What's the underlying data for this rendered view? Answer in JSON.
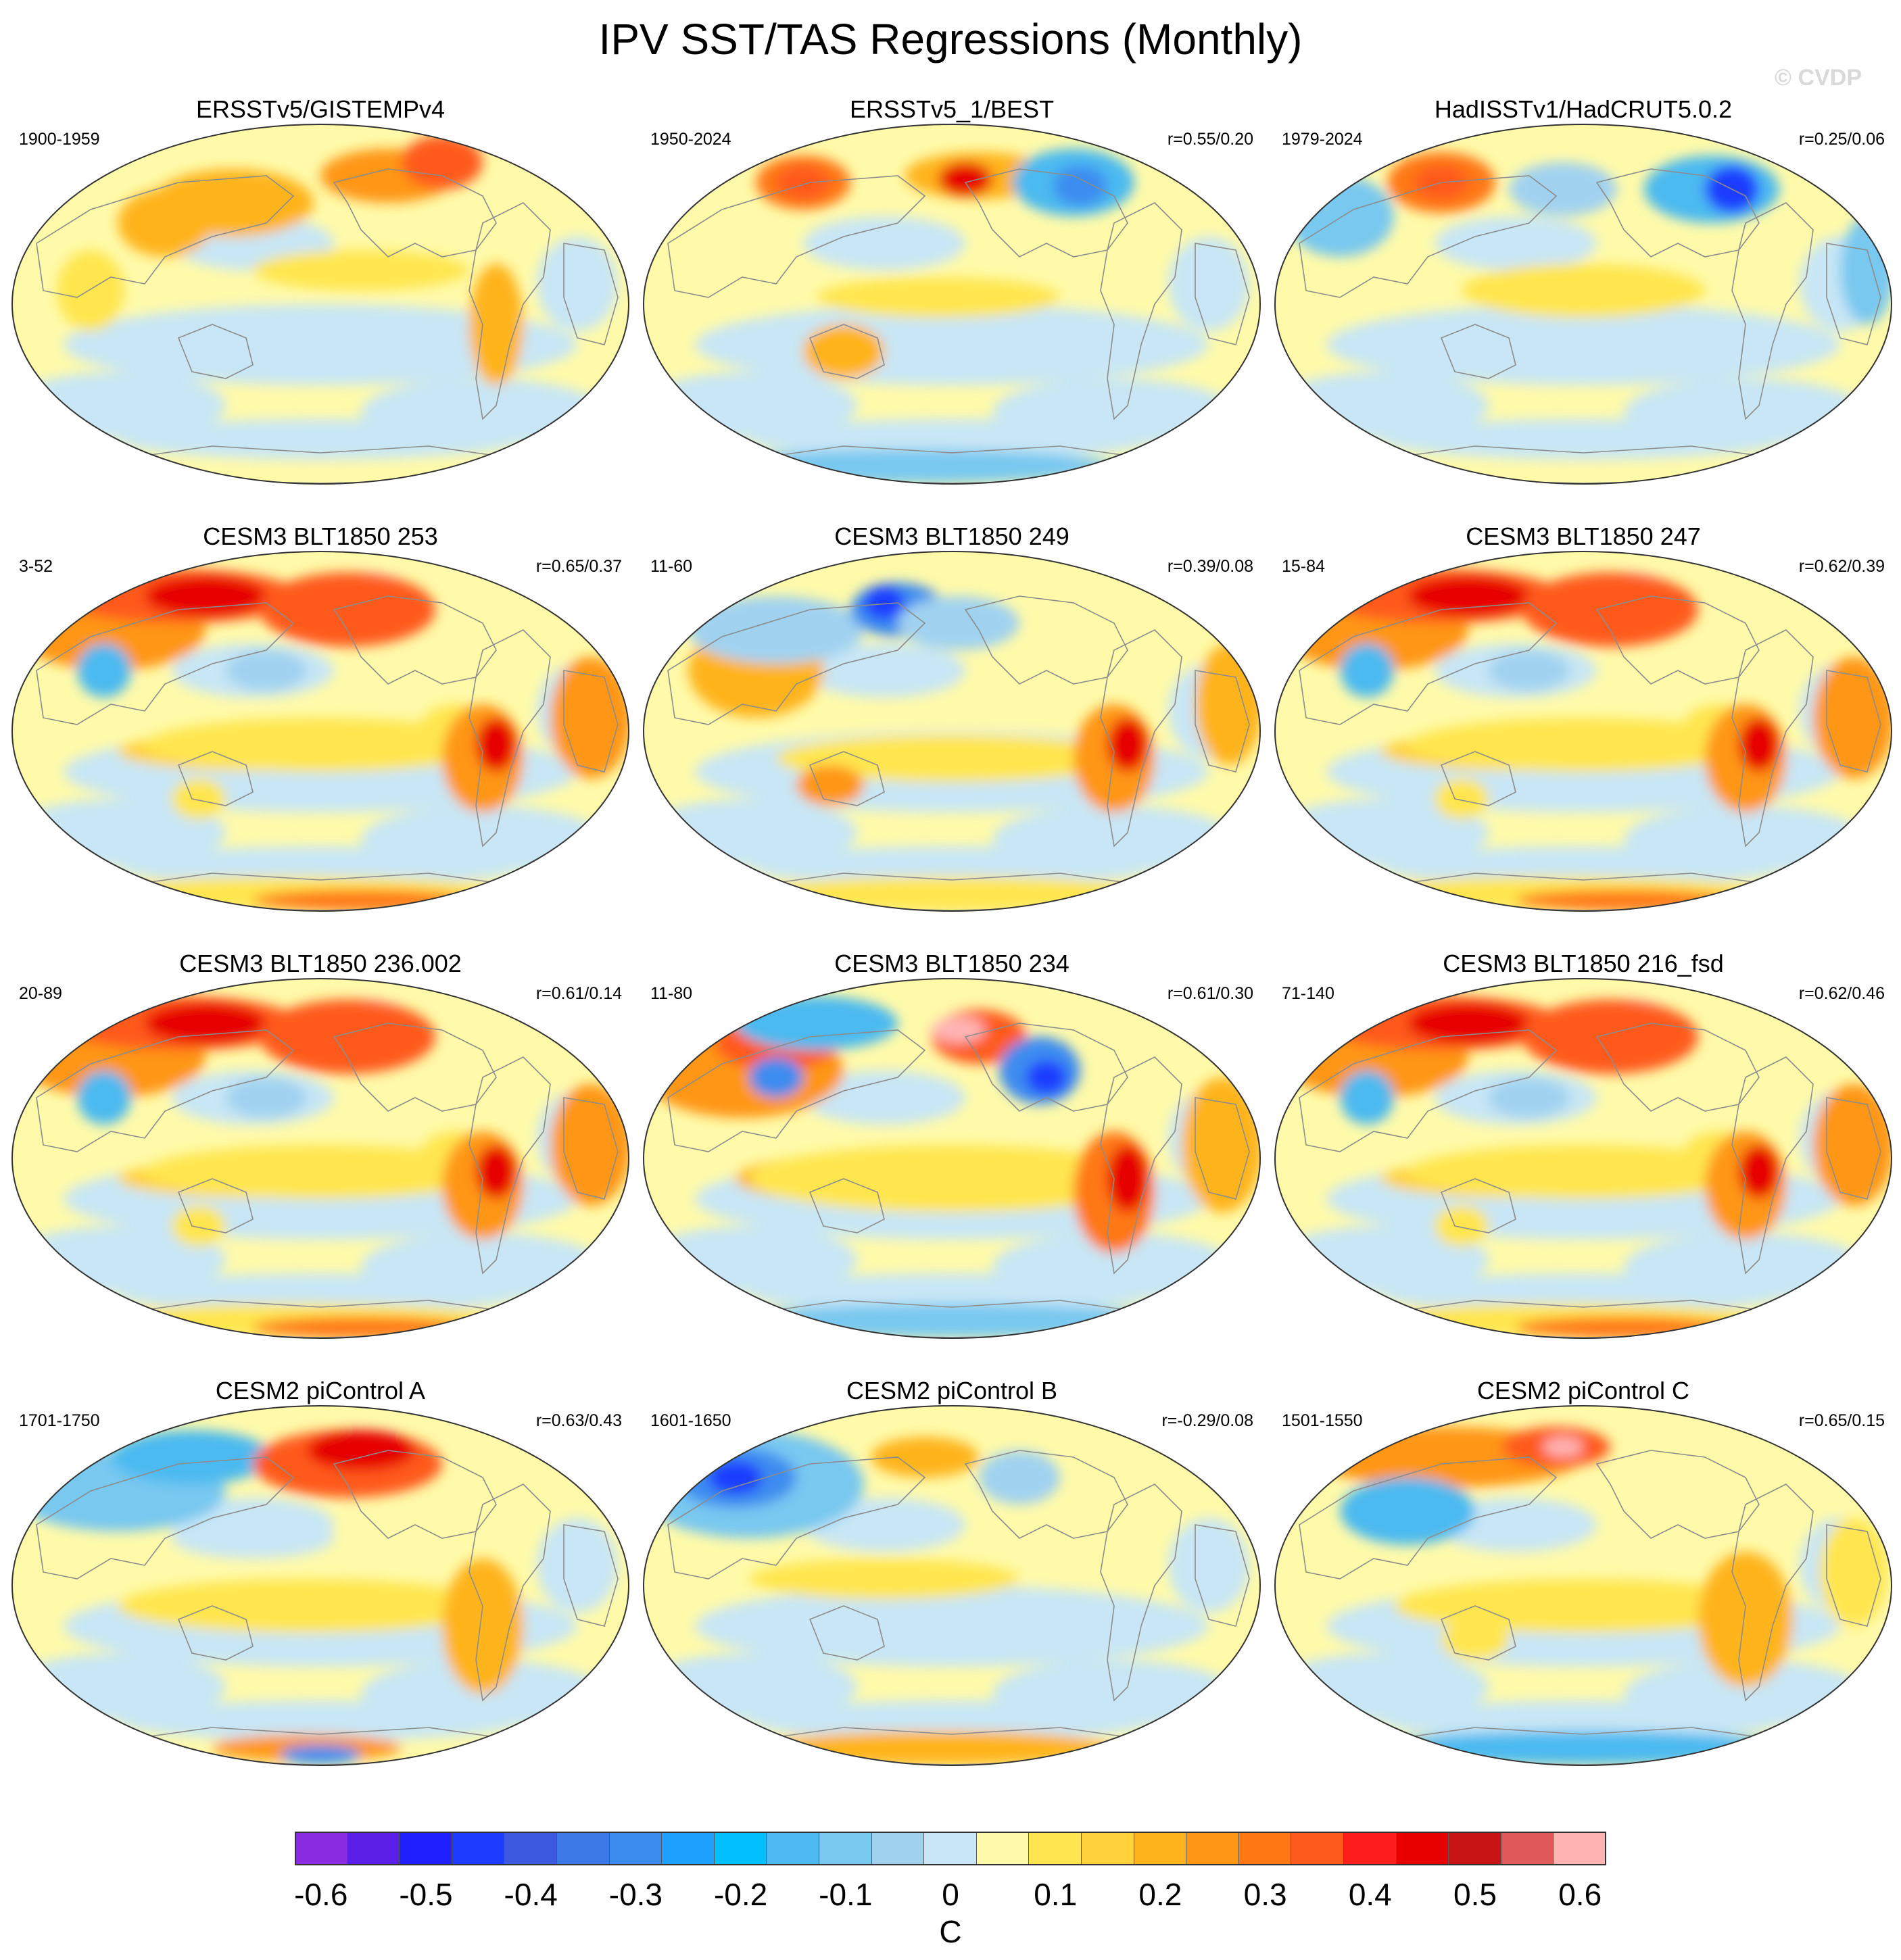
{
  "title": "IPV SST/TAS Regressions (Monthly)",
  "watermark": "© CVDP",
  "panels": [
    {
      "title": "ERSSTv5/GISTEMPv4",
      "period": "1900-1959",
      "corr": "",
      "pattern": "obs1"
    },
    {
      "title": "ERSSTv5_1/BEST",
      "period": "1950-2024",
      "corr": "r=0.55/0.20",
      "pattern": "obs2"
    },
    {
      "title": "HadISSTv1/HadCRUT5.0.2",
      "period": "1979-2024",
      "corr": "r=0.25/0.06",
      "pattern": "obs3"
    },
    {
      "title": "CESM3 BLT1850 253",
      "period": "3-52",
      "corr": "r=0.65/0.37",
      "pattern": "model-strong"
    },
    {
      "title": "CESM3 BLT1850 249",
      "period": "11-60",
      "corr": "r=0.39/0.08",
      "pattern": "model-cool-asia"
    },
    {
      "title": "CESM3 BLT1850 247",
      "period": "15-84",
      "corr": "r=0.62/0.39",
      "pattern": "model-strong"
    },
    {
      "title": "CESM3 BLT1850 236.002",
      "period": "20-89",
      "corr": "r=0.61/0.14",
      "pattern": "model-strong"
    },
    {
      "title": "CESM3 BLT1850 234",
      "period": "11-80",
      "corr": "r=0.61/0.30",
      "pattern": "model-strong-na-cool"
    },
    {
      "title": "CESM3 BLT1850 216_fsd",
      "period": "71-140",
      "corr": "r=0.62/0.46",
      "pattern": "model-strong"
    },
    {
      "title": "CESM2 piControl A",
      "period": "1701-1750",
      "corr": "r=0.63/0.43",
      "pattern": "pi-a"
    },
    {
      "title": "CESM2 piControl B",
      "period": "1601-1650",
      "corr": "r=-0.29/0.08",
      "pattern": "pi-b"
    },
    {
      "title": "CESM2 piControl C",
      "period": "1501-1550",
      "corr": "r=0.65/0.15",
      "pattern": "pi-c"
    }
  ],
  "colorbar": {
    "units": "C",
    "ticks": [
      "-0.6",
      "-0.5",
      "-0.4",
      "-0.3",
      "-0.2",
      "-0.1",
      "0",
      "0.1",
      "0.2",
      "0.3",
      "0.4",
      "0.5",
      "0.6"
    ],
    "colors": [
      "#8a2be2",
      "#5a1ee6",
      "#1f1fff",
      "#1e3cff",
      "#3c5ae0",
      "#3c78e6",
      "#3c8cf0",
      "#1ea0ff",
      "#00c0ff",
      "#4cbaf0",
      "#78c8f0",
      "#a0d2f0",
      "#c8e6f5",
      "#fffaaa",
      "#ffe650",
      "#ffd23c",
      "#ffb41e",
      "#ff9614",
      "#ff7814",
      "#ff5a1e",
      "#ff1e1e",
      "#e60000",
      "#c81414",
      "#e15a5a",
      "#ffb4b4"
    ]
  }
}
